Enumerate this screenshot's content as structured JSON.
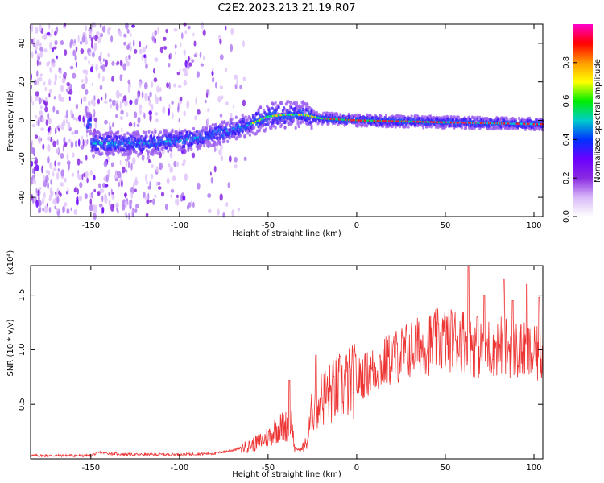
{
  "title": "C2E2.2023.213.21.19.R07",
  "colors": {
    "line": "#ee3333",
    "axis": "#000000"
  },
  "chart_data": [
    {
      "type": "heatmap",
      "xlabel": "Height of straight line (km)",
      "ylabel": "Frequency (Hz)",
      "xlim": [
        -184,
        105
      ],
      "ylim": [
        -50,
        50
      ],
      "x_ticks": [
        -150,
        -100,
        -50,
        0,
        50,
        100
      ],
      "y_ticks": [
        -40,
        -20,
        0,
        20,
        40
      ],
      "colorbar": {
        "label": "Normalized spectral amplitude",
        "range": [
          0,
          1
        ],
        "ticks": [
          "0.0",
          "0.2",
          "0.4",
          "0.6",
          "0.8"
        ],
        "colormap": [
          "#ffffff",
          "#d8b8f8",
          "#8a2be2",
          "#6a00ff",
          "#0033ff",
          "#00cccc",
          "#00ee00",
          "#ffff00",
          "#ff9900",
          "#ff0000",
          "#ff00cc"
        ]
      },
      "ridge": {
        "description_points": [
          [
            -150,
            -12
          ],
          [
            -120,
            -12
          ],
          [
            -95,
            -10
          ],
          [
            -75,
            -6
          ],
          [
            -60,
            -2
          ],
          [
            -50,
            2
          ],
          [
            -40,
            3
          ],
          [
            -30,
            3
          ],
          [
            -20,
            1
          ],
          [
            0,
            0
          ],
          [
            50,
            -1
          ],
          [
            105,
            -2
          ]
        ],
        "noise_region_x": [
          -184,
          -60
        ]
      }
    },
    {
      "type": "line",
      "xlabel": "Height of straight line (km)",
      "ylabel": "SNR (10 * v/v)",
      "yscale_label": "(x10⁴)",
      "xlim": [
        -184,
        105
      ],
      "ylim": [
        0,
        1.77
      ],
      "x_ticks": [
        -150,
        -100,
        -50,
        0,
        50,
        100
      ],
      "y_ticks": [
        0.5,
        1.0,
        1.5
      ],
      "y_tick_labels": [
        "0.5",
        "1.0",
        "1.5"
      ],
      "envelope": [
        [
          -184,
          0.03
        ],
        [
          -150,
          0.03
        ],
        [
          -145,
          0.06
        ],
        [
          -140,
          0.05
        ],
        [
          -130,
          0.04
        ],
        [
          -120,
          0.04
        ],
        [
          -100,
          0.04
        ],
        [
          -80,
          0.05
        ],
        [
          -70,
          0.08
        ],
        [
          -60,
          0.12
        ],
        [
          -50,
          0.2
        ],
        [
          -45,
          0.28
        ],
        [
          -40,
          0.3
        ],
        [
          -37,
          0.35
        ],
        [
          -35,
          0.1
        ],
        [
          -32,
          0.08
        ],
        [
          -28,
          0.15
        ],
        [
          -25,
          0.45
        ],
        [
          -20,
          0.55
        ],
        [
          -10,
          0.65
        ],
        [
          0,
          0.72
        ],
        [
          10,
          0.82
        ],
        [
          20,
          0.92
        ],
        [
          30,
          1.0
        ],
        [
          40,
          1.05
        ],
        [
          50,
          1.1
        ],
        [
          60,
          1.1
        ],
        [
          70,
          1.0
        ],
        [
          80,
          1.05
        ],
        [
          90,
          1.0
        ],
        [
          100,
          0.95
        ],
        [
          105,
          0.95
        ]
      ],
      "spikes": [
        [
          -38,
          0.72
        ],
        [
          -23,
          0.95
        ],
        [
          63,
          1.77
        ],
        [
          68,
          1.3
        ],
        [
          72,
          1.5
        ],
        [
          83,
          1.65
        ],
        [
          88,
          1.45
        ],
        [
          96,
          1.6
        ],
        [
          103,
          1.48
        ]
      ]
    }
  ]
}
